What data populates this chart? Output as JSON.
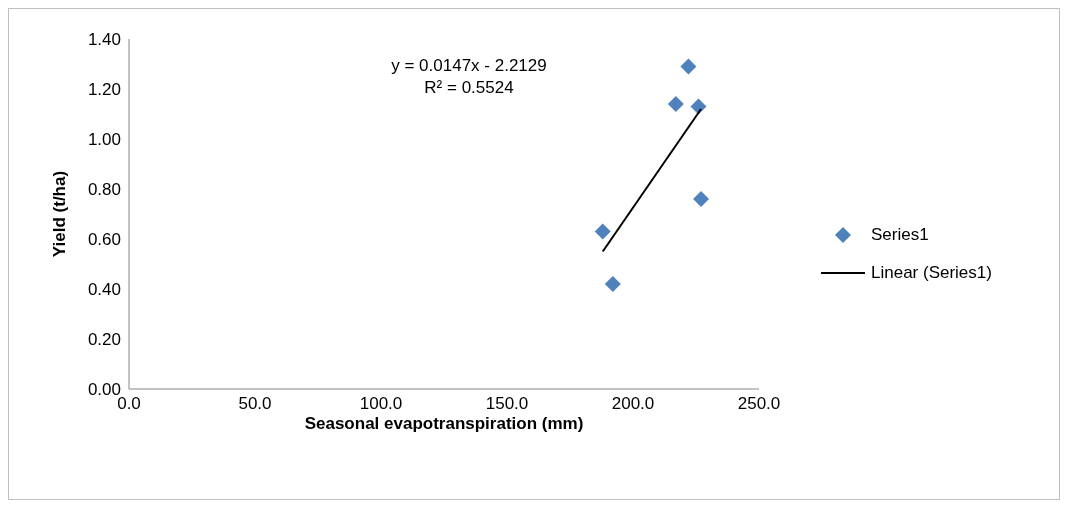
{
  "chart_data": {
    "type": "scatter",
    "xlabel": "Seasonal evapotranspiration (mm)",
    "ylabel": "Yield (t/ha)",
    "xlim": [
      0,
      250
    ],
    "xticks": [
      {
        "value": 0,
        "label": "0.0"
      },
      {
        "value": 50,
        "label": "50.0"
      },
      {
        "value": 100,
        "label": "100.0"
      },
      {
        "value": 150,
        "label": "150.0"
      },
      {
        "value": 200,
        "label": "200.0"
      },
      {
        "value": 250,
        "label": "250.0"
      }
    ],
    "ylim": [
      0,
      1.4
    ],
    "yticks": [
      {
        "value": 0,
        "label": "0.00"
      },
      {
        "value": 0.2,
        "label": "0.20"
      },
      {
        "value": 0.4,
        "label": "0.40"
      },
      {
        "value": 0.6,
        "label": "0.60"
      },
      {
        "value": 0.8,
        "label": "0.80"
      },
      {
        "value": 1,
        "label": "1.00"
      },
      {
        "value": 1.2,
        "label": "1.20"
      },
      {
        "value": 1.4,
        "label": "1.40"
      }
    ],
    "marker": "diamond",
    "legend": "right",
    "series": [
      {
        "name": "Series1",
        "color": "#4f81bd",
        "x": [
          188,
          192,
          217,
          222,
          226,
          227
        ],
        "values": [
          0.63,
          0.42,
          1.14,
          1.29,
          1.13,
          0.76
        ]
      },
      {
        "name": "Linear (Series1)",
        "type": "line",
        "color": "#000000",
        "x": [
          188,
          227
        ],
        "values": [
          0.55,
          1.12
        ],
        "marker": "none",
        "line_style": "solid"
      }
    ],
    "annotations": [
      "y = 0.0147x - 2.2129",
      "R² = 0.5524"
    ]
  }
}
